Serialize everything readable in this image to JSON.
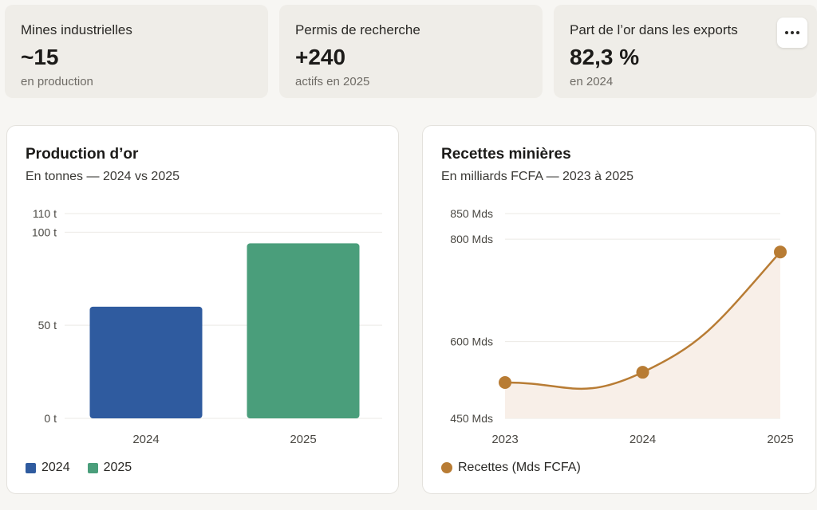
{
  "kpis": [
    {
      "label": "Mines industrielles",
      "value": "~15",
      "sub": "en production"
    },
    {
      "label": "Permis de recherche",
      "value": "+240",
      "sub": "actifs en 2025"
    },
    {
      "label": "Part de l’or dans les exports",
      "value": "82,3 %",
      "sub": "en 2024"
    }
  ],
  "colors": {
    "bar_2024": "#2f5b9f",
    "bar_2025": "#4a9e7b",
    "line": "#b87c34",
    "area": "#f8efe8"
  },
  "icons": {
    "more": "more-horizontal-icon"
  },
  "chart_data": [
    {
      "type": "bar",
      "title": "Production d’or",
      "subtitle": "En tonnes — 2024 vs 2025",
      "categories": [
        "2024",
        "2025"
      ],
      "values": [
        60,
        94
      ],
      "ylim": [
        0,
        110
      ],
      "yticks": [
        0,
        50,
        100,
        110
      ],
      "ytick_labels": [
        "0 t",
        "50 t",
        "100 t",
        "110 t"
      ],
      "legend": [
        {
          "name": "2024",
          "color": "#2f5b9f"
        },
        {
          "name": "2025",
          "color": "#4a9e7b"
        }
      ],
      "grid": true,
      "legend_position": "bottom-left"
    },
    {
      "type": "area",
      "title": "Recettes minières",
      "subtitle": "En milliards FCFA — 2023 à 2025",
      "categories": [
        "2023",
        "2024",
        "2025"
      ],
      "series": [
        {
          "name": "Recettes (Mds FCFA)",
          "values": [
            520,
            540,
            775
          ]
        }
      ],
      "ylim": [
        450,
        850
      ],
      "yticks": [
        450,
        600,
        800,
        850
      ],
      "ytick_labels": [
        "450 Mds",
        "600 Mds",
        "800 Mds",
        "850 Mds"
      ],
      "grid": true,
      "legend_position": "bottom-left"
    }
  ]
}
